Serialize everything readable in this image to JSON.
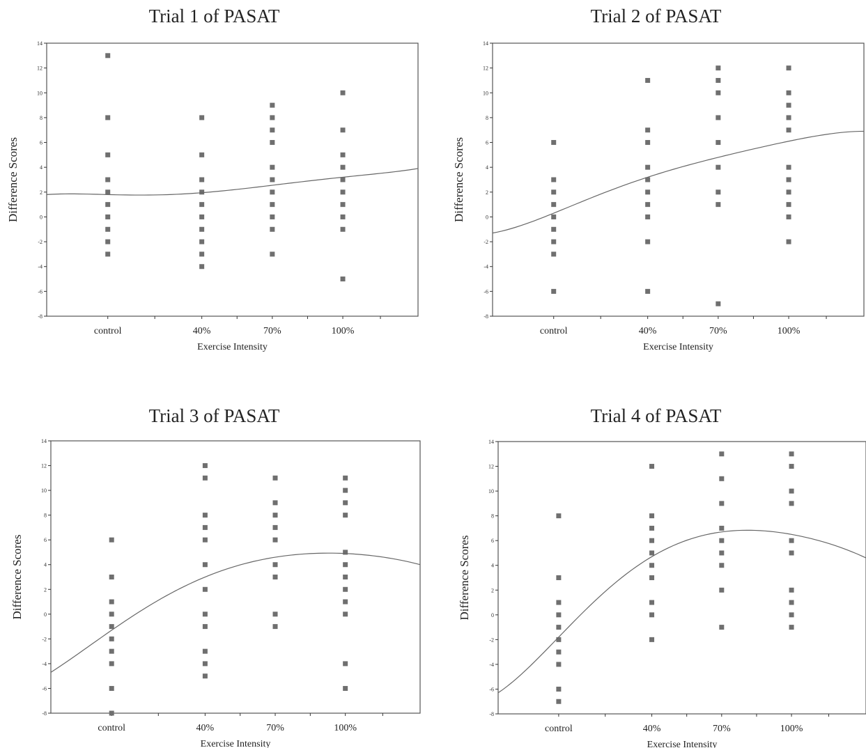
{
  "chart_data": [
    {
      "type": "scatter",
      "title": "Trial 1 of PASAT",
      "xlabel": "Exercise Intensity",
      "ylabel": "Difference Scores",
      "categories": [
        "control",
        "40%",
        "70%",
        "100%"
      ],
      "ylim": [
        -8,
        14
      ],
      "yticks": [
        14,
        12,
        10,
        8,
        6,
        4,
        2,
        0,
        -2,
        -4,
        -6,
        -8
      ],
      "ytick_labels": [
        "14",
        "12",
        "10",
        "8",
        "6",
        "4",
        "2",
        "0",
        "-2",
        "-4",
        "-6",
        "-8"
      ],
      "points": [
        [
          "control",
          13
        ],
        [
          "control",
          8
        ],
        [
          "control",
          5
        ],
        [
          "control",
          3
        ],
        [
          "control",
          2
        ],
        [
          "control",
          1
        ],
        [
          "control",
          0
        ],
        [
          "control",
          -1
        ],
        [
          "control",
          -2
        ],
        [
          "control",
          -3
        ],
        [
          "40%",
          8
        ],
        [
          "40%",
          5
        ],
        [
          "40%",
          3
        ],
        [
          "40%",
          2
        ],
        [
          "40%",
          1
        ],
        [
          "40%",
          0
        ],
        [
          "40%",
          -1
        ],
        [
          "40%",
          -2
        ],
        [
          "40%",
          -3
        ],
        [
          "40%",
          -4
        ],
        [
          "70%",
          9
        ],
        [
          "70%",
          8
        ],
        [
          "70%",
          7
        ],
        [
          "70%",
          6
        ],
        [
          "70%",
          4
        ],
        [
          "70%",
          3
        ],
        [
          "70%",
          2
        ],
        [
          "70%",
          1
        ],
        [
          "70%",
          0
        ],
        [
          "70%",
          -1
        ],
        [
          "70%",
          -3
        ],
        [
          "100%",
          10
        ],
        [
          "100%",
          7
        ],
        [
          "100%",
          5
        ],
        [
          "100%",
          4
        ],
        [
          "100%",
          3
        ],
        [
          "100%",
          2
        ],
        [
          "100%",
          1
        ],
        [
          "100%",
          0
        ],
        [
          "100%",
          -1
        ],
        [
          "100%",
          -5
        ]
      ],
      "fit_curve": {
        "type": "quadratic",
        "x": [
          -0.65,
          0,
          1,
          1.75,
          2.5,
          3.3
        ],
        "y": [
          1.8,
          1.8,
          1.95,
          2.55,
          3.2,
          3.9
        ]
      }
    },
    {
      "type": "scatter",
      "title": "Trial 2 of PASAT",
      "xlabel": "Exercise Intensity",
      "ylabel": "Difference Scores",
      "categories": [
        "control",
        "40%",
        "70%",
        "100%"
      ],
      "ylim": [
        -8,
        14
      ],
      "yticks": [
        14,
        12,
        10,
        8,
        6,
        4,
        2,
        0,
        -2,
        -4,
        -6,
        -8
      ],
      "ytick_labels": [
        "14",
        "12",
        "10",
        "8",
        "6",
        "4",
        "2",
        "0",
        "-2",
        "-4",
        "-6",
        "-8"
      ],
      "points": [
        [
          "control",
          6
        ],
        [
          "control",
          3
        ],
        [
          "control",
          2
        ],
        [
          "control",
          1
        ],
        [
          "control",
          0
        ],
        [
          "control",
          -1
        ],
        [
          "control",
          -2
        ],
        [
          "control",
          -3
        ],
        [
          "control",
          -6
        ],
        [
          "40%",
          11
        ],
        [
          "40%",
          7
        ],
        [
          "40%",
          6
        ],
        [
          "40%",
          4
        ],
        [
          "40%",
          3
        ],
        [
          "40%",
          2
        ],
        [
          "40%",
          1
        ],
        [
          "40%",
          0
        ],
        [
          "40%",
          -2
        ],
        [
          "40%",
          -6
        ],
        [
          "70%",
          12
        ],
        [
          "70%",
          11
        ],
        [
          "70%",
          10
        ],
        [
          "70%",
          8
        ],
        [
          "70%",
          6
        ],
        [
          "70%",
          4
        ],
        [
          "70%",
          2
        ],
        [
          "70%",
          1
        ],
        [
          "70%",
          -7
        ],
        [
          "100%",
          12
        ],
        [
          "100%",
          10
        ],
        [
          "100%",
          9
        ],
        [
          "100%",
          8
        ],
        [
          "100%",
          7
        ],
        [
          "100%",
          4
        ],
        [
          "100%",
          3
        ],
        [
          "100%",
          2
        ],
        [
          "100%",
          1
        ],
        [
          "100%",
          0
        ],
        [
          "100%",
          -2
        ]
      ],
      "fit_curve": {
        "type": "quadratic",
        "x": [
          -0.65,
          0,
          1,
          1.75,
          2.5,
          3.3
        ],
        "y": [
          -1.3,
          0.3,
          3.2,
          4.8,
          6.1,
          6.9
        ]
      }
    },
    {
      "type": "scatter",
      "title": "Trial 3 of PASAT",
      "xlabel": "Exercise Intensity",
      "ylabel": "Difference Scores",
      "categories": [
        "control",
        "40%",
        "70%",
        "100%"
      ],
      "ylim": [
        -8,
        14
      ],
      "yticks": [
        14,
        12,
        10,
        8,
        6,
        4,
        2,
        0,
        -2,
        -4,
        -6,
        -8
      ],
      "ytick_labels": [
        "14",
        "12",
        "10",
        "8",
        "6",
        "4",
        "2",
        "0",
        "-2",
        "-4",
        "-6",
        "-8"
      ],
      "points": [
        [
          "control",
          6
        ],
        [
          "control",
          3
        ],
        [
          "control",
          1
        ],
        [
          "control",
          0
        ],
        [
          "control",
          -1
        ],
        [
          "control",
          -2
        ],
        [
          "control",
          -3
        ],
        [
          "control",
          -4
        ],
        [
          "control",
          -6
        ],
        [
          "control",
          -8
        ],
        [
          "40%",
          12
        ],
        [
          "40%",
          11
        ],
        [
          "40%",
          8
        ],
        [
          "40%",
          7
        ],
        [
          "40%",
          6
        ],
        [
          "40%",
          4
        ],
        [
          "40%",
          2
        ],
        [
          "40%",
          0
        ],
        [
          "40%",
          -1
        ],
        [
          "40%",
          -3
        ],
        [
          "40%",
          -4
        ],
        [
          "40%",
          -5
        ],
        [
          "70%",
          11
        ],
        [
          "70%",
          9
        ],
        [
          "70%",
          8
        ],
        [
          "70%",
          7
        ],
        [
          "70%",
          6
        ],
        [
          "70%",
          4
        ],
        [
          "70%",
          3
        ],
        [
          "70%",
          0
        ],
        [
          "70%",
          -1
        ],
        [
          "100%",
          11
        ],
        [
          "100%",
          10
        ],
        [
          "100%",
          9
        ],
        [
          "100%",
          8
        ],
        [
          "100%",
          5
        ],
        [
          "100%",
          4
        ],
        [
          "100%",
          3
        ],
        [
          "100%",
          2
        ],
        [
          "100%",
          1
        ],
        [
          "100%",
          0
        ],
        [
          "100%",
          -4
        ],
        [
          "100%",
          -6
        ]
      ],
      "fit_curve": {
        "type": "quadratic",
        "x": [
          -0.65,
          0,
          1,
          1.75,
          2.5,
          3.3
        ],
        "y": [
          -4.7,
          -1.3,
          3.0,
          4.6,
          4.9,
          4.0
        ]
      }
    },
    {
      "type": "scatter",
      "title": "Trial 4 of PASAT",
      "xlabel": "Exercise Intensity",
      "ylabel": "Difference Scores",
      "categories": [
        "control",
        "40%",
        "70%",
        "100%"
      ],
      "ylim": [
        -8,
        14
      ],
      "yticks": [
        14,
        12,
        10,
        8,
        6,
        4,
        2,
        0,
        -2,
        -4,
        -6,
        -8
      ],
      "ytick_labels": [
        "14",
        "12",
        "10",
        "8",
        "6",
        "4",
        "2",
        "0",
        "-2",
        "-4",
        "-6",
        "-8"
      ],
      "points": [
        [
          "control",
          8
        ],
        [
          "control",
          3
        ],
        [
          "control",
          1
        ],
        [
          "control",
          0
        ],
        [
          "control",
          -1
        ],
        [
          "control",
          -2
        ],
        [
          "control",
          -3
        ],
        [
          "control",
          -4
        ],
        [
          "control",
          -6
        ],
        [
          "control",
          -7
        ],
        [
          "40%",
          12
        ],
        [
          "40%",
          8
        ],
        [
          "40%",
          7
        ],
        [
          "40%",
          6
        ],
        [
          "40%",
          5
        ],
        [
          "40%",
          4
        ],
        [
          "40%",
          3
        ],
        [
          "40%",
          1
        ],
        [
          "40%",
          0
        ],
        [
          "40%",
          -2
        ],
        [
          "70%",
          13
        ],
        [
          "70%",
          11
        ],
        [
          "70%",
          9
        ],
        [
          "70%",
          7
        ],
        [
          "70%",
          6
        ],
        [
          "70%",
          5
        ],
        [
          "70%",
          4
        ],
        [
          "70%",
          2
        ],
        [
          "70%",
          -1
        ],
        [
          "100%",
          13
        ],
        [
          "100%",
          12
        ],
        [
          "100%",
          10
        ],
        [
          "100%",
          9
        ],
        [
          "100%",
          6
        ],
        [
          "100%",
          5
        ],
        [
          "100%",
          2
        ],
        [
          "100%",
          1
        ],
        [
          "100%",
          0
        ],
        [
          "100%",
          -1
        ]
      ],
      "fit_curve": {
        "type": "quadratic",
        "x": [
          -0.65,
          0,
          1,
          1.75,
          2.5,
          3.3
        ],
        "y": [
          -6.3,
          -1.8,
          4.7,
          6.7,
          6.5,
          4.6
        ]
      }
    }
  ]
}
